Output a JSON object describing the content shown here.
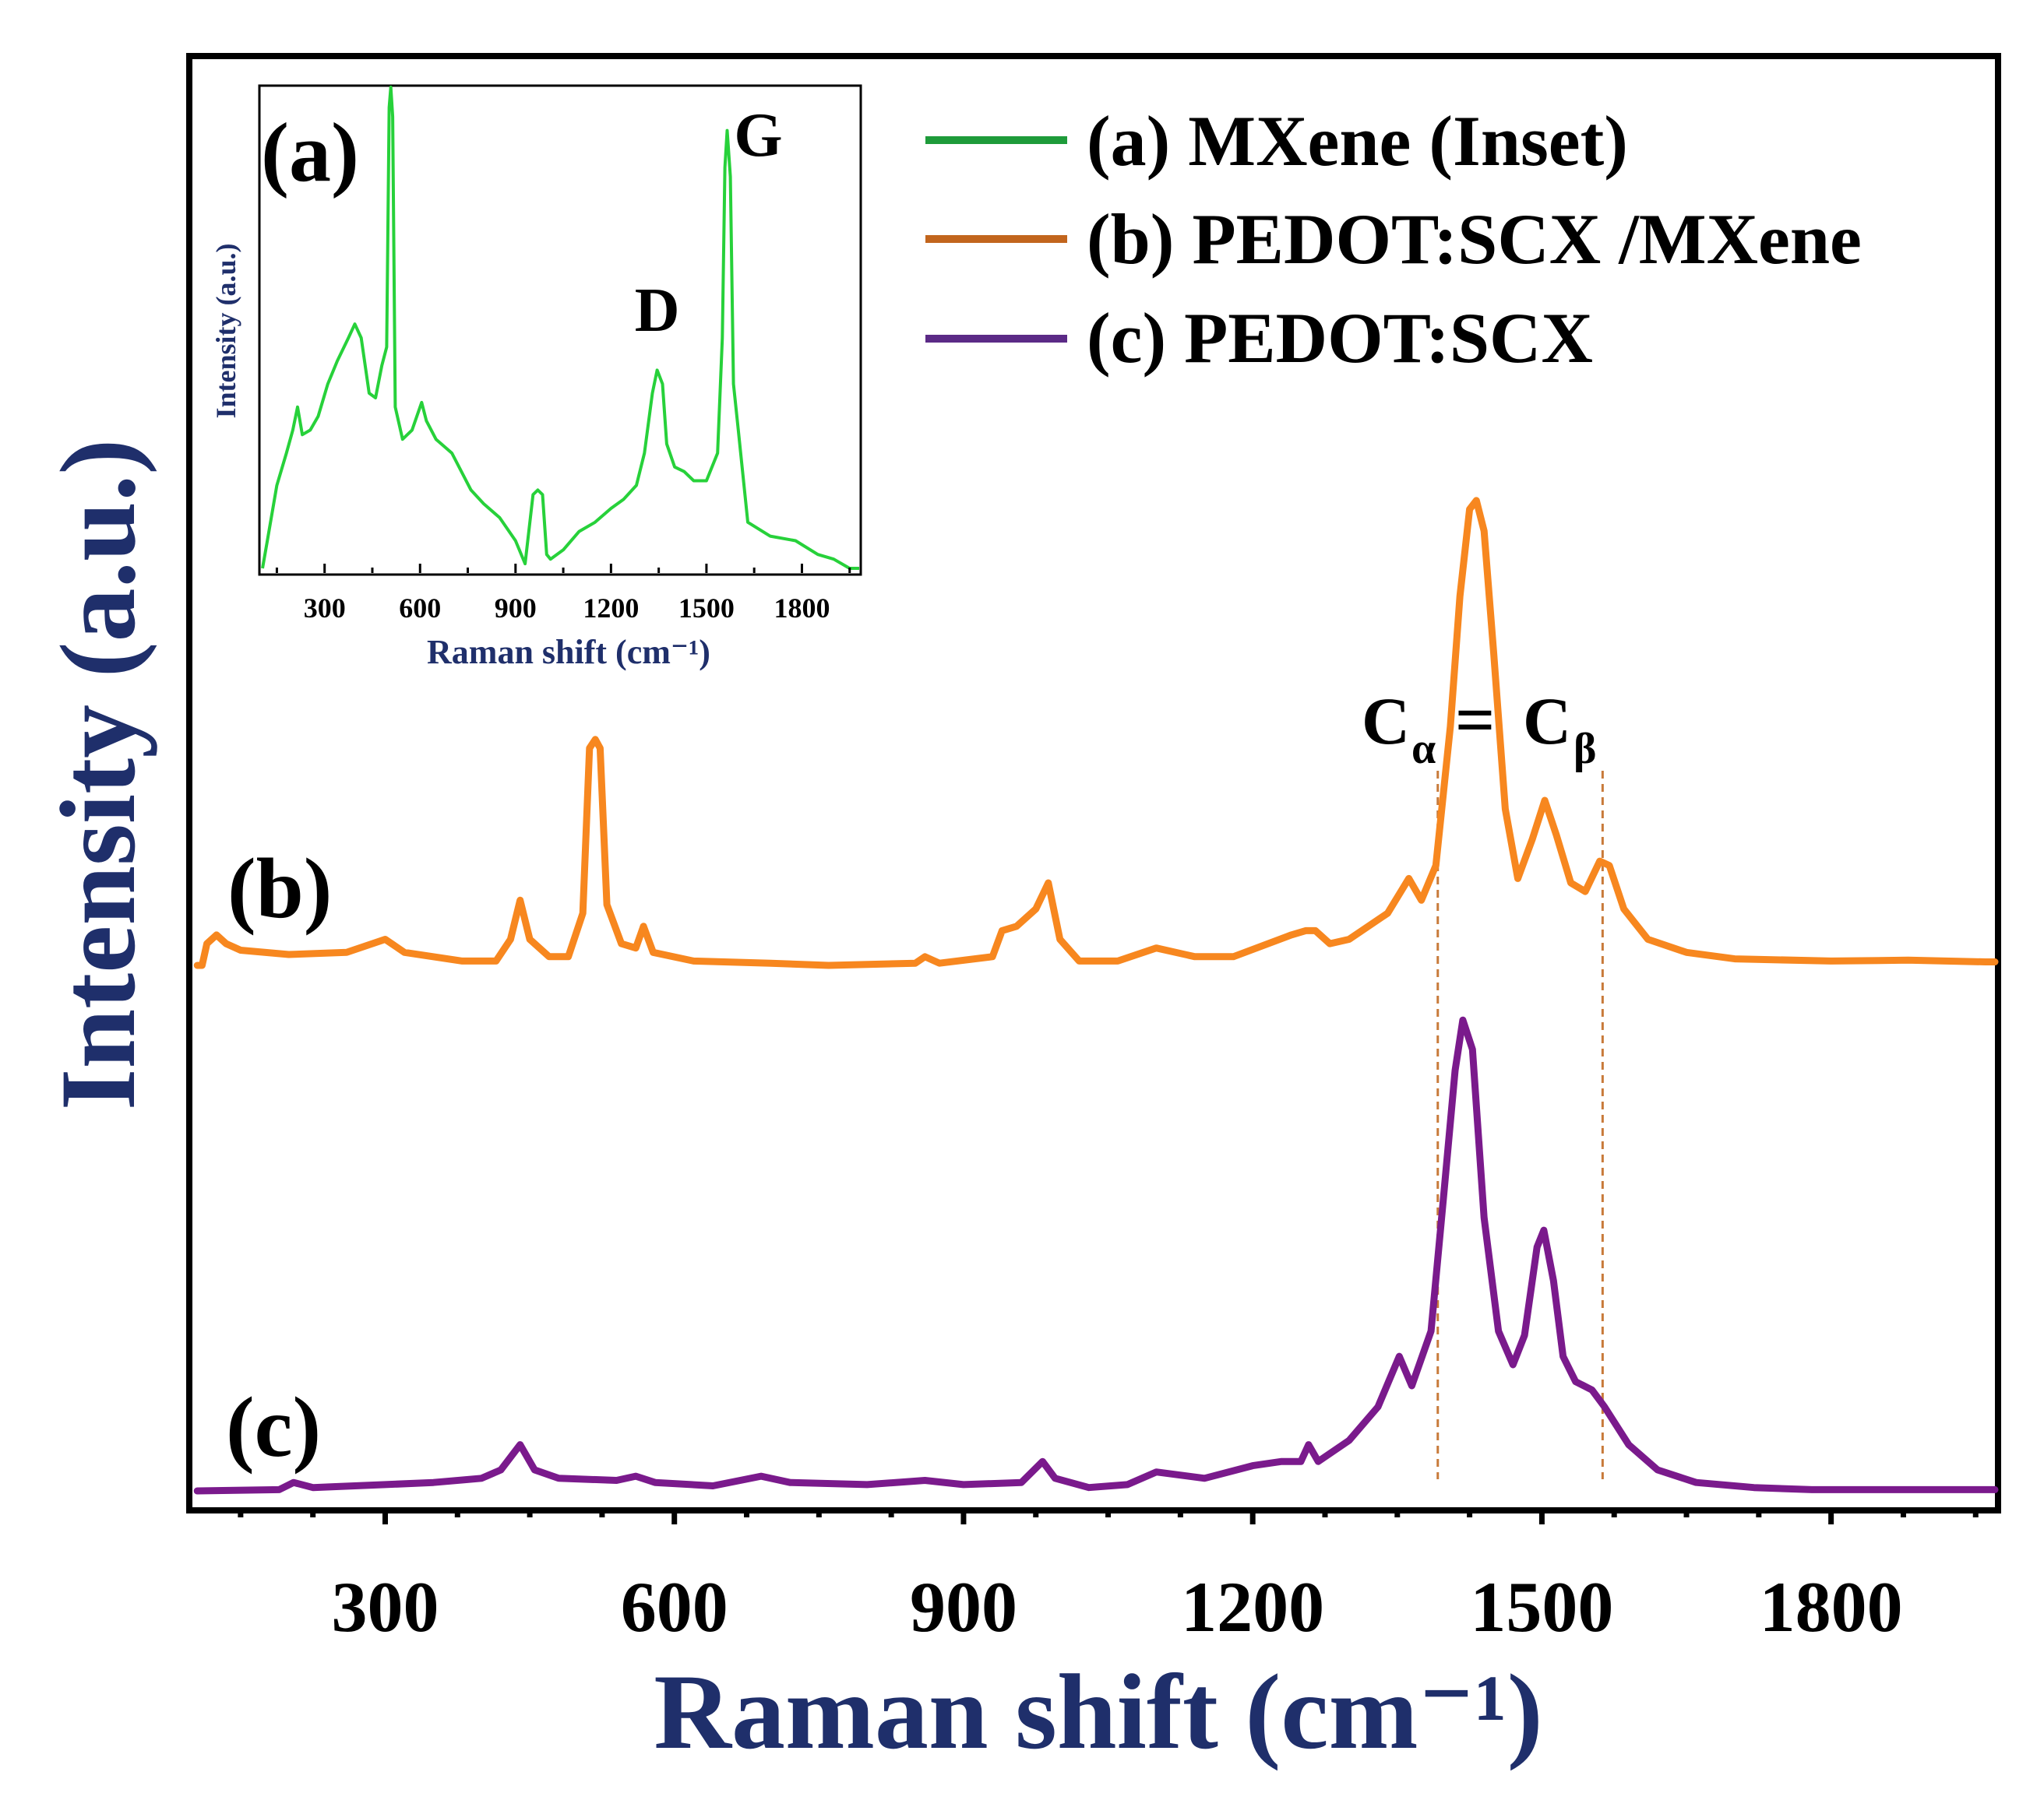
{
  "colors": {
    "mxene": "#27d13a",
    "mxene_legend": "#1e9b3a",
    "pedot_mxene": "#f7871f",
    "pedot_mxene_legend": "#c2651d",
    "pedot": "#7a1a8c",
    "pedot_legend": "#5b2a86",
    "axis_title": "#1f2f6b",
    "guide": "#c87a3a"
  },
  "chart_data": [
    {
      "id": "main",
      "type": "line",
      "xlabel": "Raman shift (cm⁻¹)",
      "ylabel": "Intensity (a.u.)",
      "xlim": [
        100,
        1970
      ],
      "xticks": [
        "300",
        "600",
        "900",
        "1200",
        "1500",
        "1800"
      ],
      "xtick_values": [
        300,
        600,
        900,
        1200,
        1500,
        1800
      ],
      "yticks_shown": false,
      "series": [
        {
          "name": "(b) PEDOT:SCX /MXene",
          "label": "(b)",
          "color_key": "pedot_mxene",
          "baseline_offset": 1.0,
          "points": [
            [
              105,
              0.0
            ],
            [
              110,
              0.0
            ],
            [
              115,
              0.05
            ],
            [
              125,
              0.07
            ],
            [
              135,
              0.05
            ],
            [
              150,
              0.035
            ],
            [
              200,
              0.025
            ],
            [
              260,
              0.03
            ],
            [
              300,
              0.06
            ],
            [
              320,
              0.03
            ],
            [
              380,
              0.01
            ],
            [
              415,
              0.01
            ],
            [
              430,
              0.06
            ],
            [
              440,
              0.15
            ],
            [
              450,
              0.06
            ],
            [
              470,
              0.02
            ],
            [
              490,
              0.02
            ],
            [
              505,
              0.12
            ],
            [
              512,
              0.5
            ],
            [
              518,
              0.52
            ],
            [
              523,
              0.5
            ],
            [
              530,
              0.14
            ],
            [
              545,
              0.05
            ],
            [
              560,
              0.04
            ],
            [
              568,
              0.09
            ],
            [
              578,
              0.03
            ],
            [
              620,
              0.01
            ],
            [
              700,
              0.005
            ],
            [
              760,
              0.0
            ],
            [
              850,
              0.005
            ],
            [
              860,
              0.02
            ],
            [
              875,
              0.005
            ],
            [
              930,
              0.02
            ],
            [
              940,
              0.08
            ],
            [
              955,
              0.09
            ],
            [
              975,
              0.13
            ],
            [
              988,
              0.19
            ],
            [
              1000,
              0.06
            ],
            [
              1020,
              0.01
            ],
            [
              1060,
              0.01
            ],
            [
              1100,
              0.04
            ],
            [
              1140,
              0.02
            ],
            [
              1180,
              0.02
            ],
            [
              1240,
              0.07
            ],
            [
              1255,
              0.08
            ],
            [
              1265,
              0.08
            ],
            [
              1280,
              0.05
            ],
            [
              1300,
              0.06
            ],
            [
              1340,
              0.12
            ],
            [
              1362,
              0.2
            ],
            [
              1375,
              0.15
            ],
            [
              1390,
              0.23
            ],
            [
              1405,
              0.55
            ],
            [
              1415,
              0.85
            ],
            [
              1425,
              1.05
            ],
            [
              1432,
              1.07
            ],
            [
              1440,
              1.0
            ],
            [
              1450,
              0.72
            ],
            [
              1462,
              0.36
            ],
            [
              1475,
              0.2
            ],
            [
              1490,
              0.29
            ],
            [
              1503,
              0.38
            ],
            [
              1515,
              0.3
            ],
            [
              1530,
              0.19
            ],
            [
              1545,
              0.17
            ],
            [
              1560,
              0.24
            ],
            [
              1570,
              0.23
            ],
            [
              1585,
              0.13
            ],
            [
              1610,
              0.06
            ],
            [
              1650,
              0.03
            ],
            [
              1700,
              0.015
            ],
            [
              1800,
              0.01
            ],
            [
              1880,
              0.012
            ],
            [
              1960,
              0.008
            ],
            [
              1970,
              0.008
            ]
          ]
        },
        {
          "name": "(c) PEDOT:SCX",
          "label": "(c)",
          "color_key": "pedot",
          "baseline_offset": 0.0,
          "points": [
            [
              105,
              0.0
            ],
            [
              190,
              0.003
            ],
            [
              205,
              0.02
            ],
            [
              225,
              0.008
            ],
            [
              300,
              0.015
            ],
            [
              350,
              0.02
            ],
            [
              400,
              0.03
            ],
            [
              420,
              0.05
            ],
            [
              440,
              0.11
            ],
            [
              455,
              0.05
            ],
            [
              480,
              0.03
            ],
            [
              540,
              0.025
            ],
            [
              560,
              0.035
            ],
            [
              580,
              0.02
            ],
            [
              640,
              0.012
            ],
            [
              690,
              0.035
            ],
            [
              720,
              0.02
            ],
            [
              800,
              0.015
            ],
            [
              860,
              0.025
            ],
            [
              900,
              0.015
            ],
            [
              960,
              0.02
            ],
            [
              982,
              0.07
            ],
            [
              995,
              0.03
            ],
            [
              1030,
              0.008
            ],
            [
              1070,
              0.015
            ],
            [
              1100,
              0.045
            ],
            [
              1150,
              0.03
            ],
            [
              1200,
              0.06
            ],
            [
              1230,
              0.07
            ],
            [
              1250,
              0.07
            ],
            [
              1258,
              0.11
            ],
            [
              1268,
              0.07
            ],
            [
              1300,
              0.12
            ],
            [
              1330,
              0.2
            ],
            [
              1352,
              0.32
            ],
            [
              1365,
              0.25
            ],
            [
              1385,
              0.38
            ],
            [
              1398,
              0.7
            ],
            [
              1410,
              1.0
            ],
            [
              1418,
              1.12
            ],
            [
              1428,
              1.05
            ],
            [
              1440,
              0.65
            ],
            [
              1455,
              0.38
            ],
            [
              1470,
              0.3
            ],
            [
              1482,
              0.37
            ],
            [
              1495,
              0.58
            ],
            [
              1502,
              0.62
            ],
            [
              1512,
              0.5
            ],
            [
              1522,
              0.32
            ],
            [
              1535,
              0.26
            ],
            [
              1552,
              0.24
            ],
            [
              1565,
              0.2
            ],
            [
              1590,
              0.11
            ],
            [
              1620,
              0.05
            ],
            [
              1660,
              0.02
            ],
            [
              1720,
              0.008
            ],
            [
              1780,
              0.003
            ],
            [
              1800,
              0.003
            ],
            [
              1970,
              0.003
            ]
          ]
        }
      ],
      "guide_lines_x": [
        1392,
        1563
      ],
      "annotation": {
        "c_alpha_base": "C",
        "c_alpha_sub": "α",
        "equals": "=",
        "c_beta_base": "C",
        "c_beta_sub": "β"
      }
    },
    {
      "id": "inset",
      "type": "line",
      "panel_label": "(a)",
      "xlabel": "Raman shift (cm⁻¹)",
      "ylabel": "Intensity (a.u.)",
      "xlim": [
        100,
        1980
      ],
      "xticks": [
        "300",
        "600",
        "900",
        "1200",
        "1500",
        "1800"
      ],
      "xtick_values": [
        300,
        600,
        900,
        1200,
        1500,
        1800
      ],
      "series": [
        {
          "name": "(a) MXene (Inset)",
          "color_key": "mxene",
          "points": [
            [
              105,
              0.0
            ],
            [
              120,
              0.06
            ],
            [
              150,
              0.18
            ],
            [
              180,
              0.25
            ],
            [
              200,
              0.3
            ],
            [
              215,
              0.35
            ],
            [
              230,
              0.29
            ],
            [
              255,
              0.3
            ],
            [
              280,
              0.33
            ],
            [
              310,
              0.4
            ],
            [
              340,
              0.45
            ],
            [
              375,
              0.5
            ],
            [
              395,
              0.53
            ],
            [
              415,
              0.5
            ],
            [
              440,
              0.38
            ],
            [
              460,
              0.37
            ],
            [
              480,
              0.44
            ],
            [
              495,
              0.48
            ],
            [
              503,
              1.0
            ],
            [
              508,
              1.05
            ],
            [
              514,
              0.98
            ],
            [
              522,
              0.35
            ],
            [
              545,
              0.28
            ],
            [
              575,
              0.3
            ],
            [
              605,
              0.36
            ],
            [
              620,
              0.32
            ],
            [
              650,
              0.28
            ],
            [
              700,
              0.25
            ],
            [
              760,
              0.17
            ],
            [
              800,
              0.14
            ],
            [
              850,
              0.11
            ],
            [
              900,
              0.06
            ],
            [
              930,
              0.01
            ],
            [
              955,
              0.16
            ],
            [
              970,
              0.17
            ],
            [
              985,
              0.16
            ],
            [
              998,
              0.03
            ],
            [
              1010,
              0.02
            ],
            [
              1050,
              0.04
            ],
            [
              1100,
              0.08
            ],
            [
              1150,
              0.1
            ],
            [
              1200,
              0.13
            ],
            [
              1240,
              0.15
            ],
            [
              1280,
              0.18
            ],
            [
              1305,
              0.25
            ],
            [
              1330,
              0.38
            ],
            [
              1345,
              0.43
            ],
            [
              1362,
              0.4
            ],
            [
              1375,
              0.27
            ],
            [
              1400,
              0.22
            ],
            [
              1430,
              0.21
            ],
            [
              1460,
              0.19
            ],
            [
              1500,
              0.19
            ],
            [
              1535,
              0.25
            ],
            [
              1550,
              0.5
            ],
            [
              1558,
              0.87
            ],
            [
              1565,
              0.95
            ],
            [
              1575,
              0.85
            ],
            [
              1585,
              0.4
            ],
            [
              1600,
              0.3
            ],
            [
              1630,
              0.1
            ],
            [
              1700,
              0.07
            ],
            [
              1780,
              0.06
            ],
            [
              1850,
              0.03
            ],
            [
              1900,
              0.02
            ],
            [
              1950,
              0.0
            ],
            [
              1980,
              0.0
            ]
          ]
        }
      ],
      "peak_labels": [
        {
          "text": "D",
          "x": 1345
        },
        {
          "text": "G",
          "x": 1565
        }
      ]
    }
  ],
  "legend": [
    {
      "label": "(a) MXene (Inset)",
      "color_key": "mxene_legend"
    },
    {
      "label": "(b) PEDOT:SCX /MXene",
      "color_key": "pedot_mxene_legend"
    },
    {
      "label": "(c) PEDOT:SCX",
      "color_key": "pedot_legend"
    }
  ]
}
